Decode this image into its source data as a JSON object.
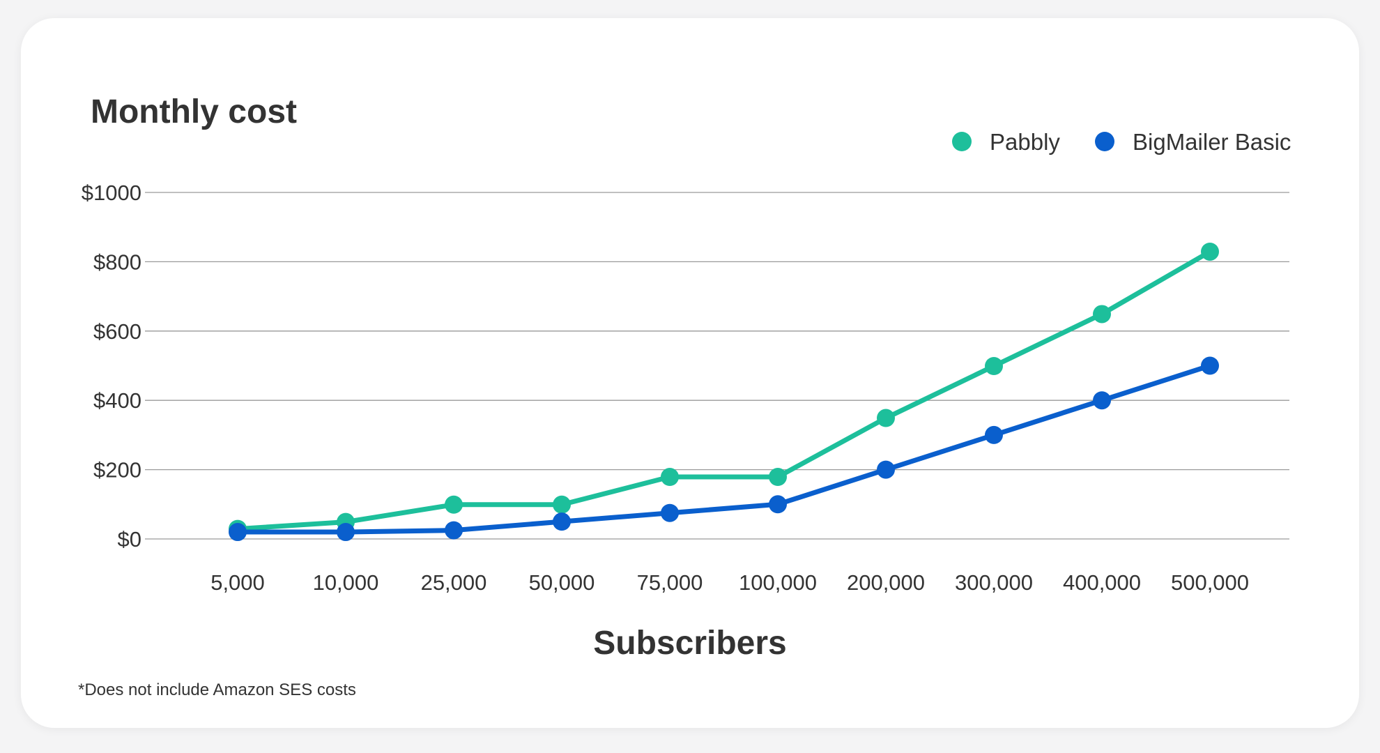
{
  "chart_data": {
    "type": "line",
    "title": "Monthly cost",
    "xlabel": "Subscribers",
    "ylabel": "",
    "categories": [
      "5,000",
      "10,000",
      "25,000",
      "50,000",
      "75,000",
      "100,000",
      "200,000",
      "300,000",
      "400,000",
      "500,000"
    ],
    "y_ticks": [
      "$0",
      "$200",
      "$400",
      "$600",
      "$800",
      "$1000"
    ],
    "ylim": [
      0,
      1000
    ],
    "grid": true,
    "legend_position": "top-right",
    "series": [
      {
        "name": "Pabbly",
        "color": "#1dbf9b",
        "values": [
          29,
          49,
          99,
          99,
          179,
          179,
          349,
          499,
          649,
          829
        ]
      },
      {
        "name": "BigMailer Basic",
        "color": "#0a5fcd",
        "values": [
          20,
          20,
          25,
          50,
          75,
          100,
          200,
          300,
          400,
          500
        ]
      }
    ],
    "footnote": "*Does not include Amazon SES costs"
  }
}
